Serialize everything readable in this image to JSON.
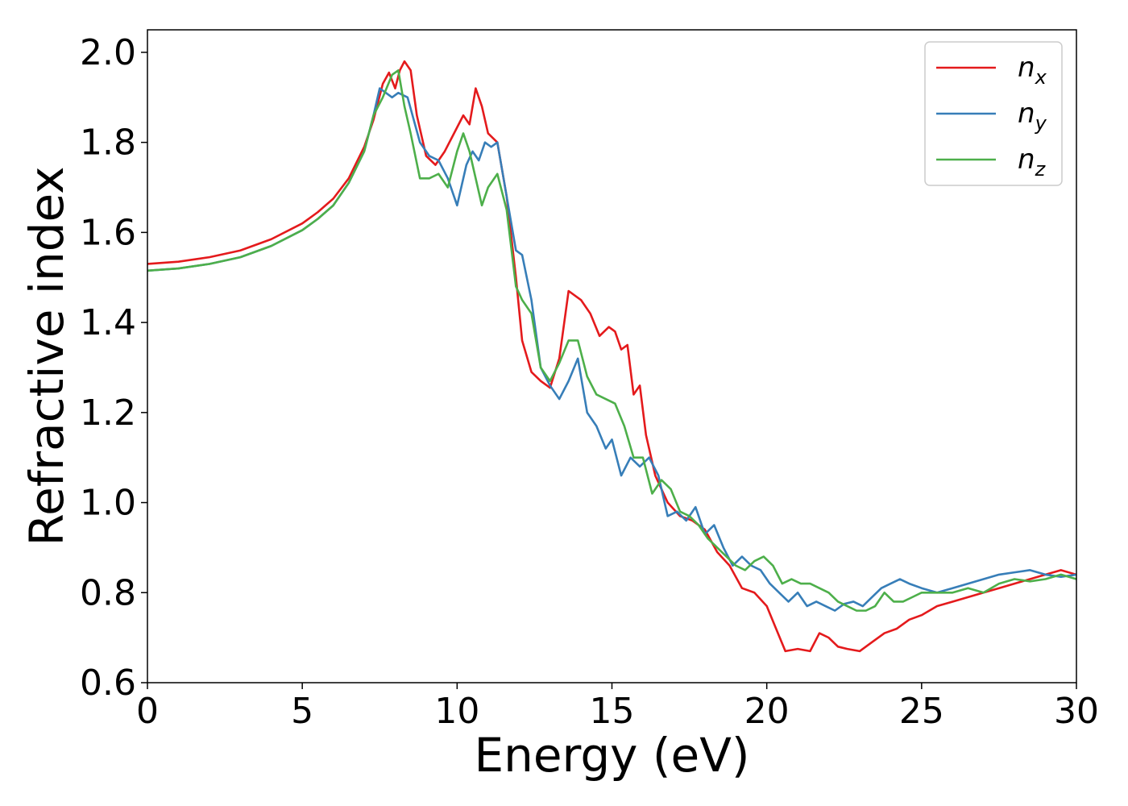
{
  "chart_data": {
    "type": "line",
    "xlabel": "Energy (eV)",
    "ylabel": "Refractive index",
    "xlim": [
      0,
      30
    ],
    "ylim": [
      0.6,
      2.05
    ],
    "xticks": [
      0,
      5,
      10,
      15,
      20,
      25,
      30
    ],
    "xtick_labels": [
      "0",
      "5",
      "10",
      "15",
      "20",
      "25",
      "30"
    ],
    "yticks": [
      0.6,
      0.8,
      1.0,
      1.2,
      1.4,
      1.6,
      1.8,
      2.0
    ],
    "ytick_labels": [
      "0.6",
      "0.8",
      "1.0",
      "1.2",
      "1.4",
      "1.6",
      "1.8",
      "2.0"
    ],
    "grid": false,
    "legend_position": "top-right",
    "series": [
      {
        "name": "n_x",
        "label_base": "n",
        "label_sub": "x",
        "color": "#e41a1c",
        "x": [
          0,
          1,
          2,
          3,
          4,
          5,
          5.5,
          6,
          6.5,
          7,
          7.3,
          7.6,
          7.8,
          8.0,
          8.15,
          8.3,
          8.5,
          8.7,
          9.0,
          9.3,
          9.6,
          9.9,
          10.2,
          10.4,
          10.6,
          10.8,
          11.0,
          11.3,
          11.6,
          11.9,
          12.1,
          12.4,
          12.7,
          13.0,
          13.3,
          13.6,
          14.0,
          14.3,
          14.6,
          14.9,
          15.1,
          15.3,
          15.5,
          15.7,
          15.9,
          16.1,
          16.4,
          16.8,
          17.2,
          17.6,
          18.0,
          18.4,
          18.8,
          19.2,
          19.6,
          20.0,
          20.3,
          20.6,
          21.0,
          21.4,
          21.7,
          22.0,
          22.3,
          22.6,
          23.0,
          23.4,
          23.8,
          24.2,
          24.6,
          25.0,
          25.5,
          26.0,
          26.5,
          27.0,
          27.5,
          28.0,
          28.5,
          29.0,
          29.5,
          30.0
        ],
        "y": [
          1.53,
          1.535,
          1.545,
          1.56,
          1.585,
          1.62,
          1.645,
          1.675,
          1.72,
          1.79,
          1.85,
          1.93,
          1.955,
          1.92,
          1.96,
          1.98,
          1.96,
          1.86,
          1.77,
          1.75,
          1.78,
          1.82,
          1.86,
          1.84,
          1.92,
          1.88,
          1.82,
          1.8,
          1.68,
          1.5,
          1.36,
          1.29,
          1.27,
          1.255,
          1.32,
          1.47,
          1.45,
          1.42,
          1.37,
          1.39,
          1.38,
          1.34,
          1.35,
          1.24,
          1.26,
          1.15,
          1.06,
          1.0,
          0.97,
          0.96,
          0.94,
          0.89,
          0.86,
          0.81,
          0.8,
          0.77,
          0.72,
          0.67,
          0.675,
          0.67,
          0.71,
          0.7,
          0.68,
          0.675,
          0.67,
          0.69,
          0.71,
          0.72,
          0.74,
          0.75,
          0.77,
          0.78,
          0.79,
          0.8,
          0.81,
          0.82,
          0.83,
          0.84,
          0.85,
          0.84
        ]
      },
      {
        "name": "n_y",
        "label_base": "n",
        "label_sub": "y",
        "color": "#377eb8",
        "x": [
          0,
          1,
          2,
          3,
          4,
          5,
          5.5,
          6,
          6.5,
          7,
          7.3,
          7.5,
          7.7,
          7.9,
          8.1,
          8.4,
          8.6,
          8.8,
          9.1,
          9.4,
          9.7,
          10.0,
          10.3,
          10.5,
          10.7,
          10.9,
          11.1,
          11.3,
          11.6,
          11.9,
          12.1,
          12.4,
          12.7,
          13.0,
          13.3,
          13.6,
          13.9,
          14.2,
          14.5,
          14.8,
          15.0,
          15.3,
          15.6,
          15.9,
          16.2,
          16.5,
          16.8,
          17.1,
          17.4,
          17.7,
          18.0,
          18.3,
          18.6,
          18.9,
          19.2,
          19.5,
          19.8,
          20.1,
          20.4,
          20.7,
          21.0,
          21.3,
          21.6,
          21.9,
          22.2,
          22.5,
          22.8,
          23.1,
          23.4,
          23.7,
          24.0,
          24.3,
          24.6,
          25.0,
          25.5,
          26.0,
          26.5,
          27.0,
          27.5,
          28.0,
          28.5,
          29.0,
          29.5,
          30.0
        ],
        "y": [
          1.515,
          1.52,
          1.53,
          1.545,
          1.57,
          1.605,
          1.63,
          1.66,
          1.71,
          1.78,
          1.86,
          1.92,
          1.91,
          1.9,
          1.91,
          1.9,
          1.85,
          1.8,
          1.77,
          1.76,
          1.72,
          1.66,
          1.75,
          1.78,
          1.76,
          1.8,
          1.79,
          1.8,
          1.68,
          1.56,
          1.55,
          1.45,
          1.3,
          1.26,
          1.23,
          1.27,
          1.32,
          1.2,
          1.17,
          1.12,
          1.14,
          1.06,
          1.1,
          1.08,
          1.1,
          1.06,
          0.97,
          0.98,
          0.96,
          0.99,
          0.93,
          0.95,
          0.9,
          0.86,
          0.88,
          0.86,
          0.85,
          0.82,
          0.8,
          0.78,
          0.8,
          0.77,
          0.78,
          0.77,
          0.76,
          0.775,
          0.78,
          0.77,
          0.79,
          0.81,
          0.82,
          0.83,
          0.82,
          0.81,
          0.8,
          0.81,
          0.82,
          0.83,
          0.84,
          0.845,
          0.85,
          0.84,
          0.835,
          0.84
        ]
      },
      {
        "name": "n_z",
        "label_base": "n",
        "label_sub": "z",
        "color": "#4daf4a",
        "x": [
          0,
          1,
          2,
          3,
          4,
          5,
          5.5,
          6,
          6.5,
          7,
          7.3,
          7.6,
          7.9,
          8.1,
          8.3,
          8.5,
          8.8,
          9.1,
          9.4,
          9.7,
          10.0,
          10.2,
          10.4,
          10.6,
          10.8,
          11.0,
          11.3,
          11.6,
          11.9,
          12.1,
          12.4,
          12.7,
          13.0,
          13.3,
          13.6,
          13.9,
          14.2,
          14.5,
          14.8,
          15.1,
          15.4,
          15.7,
          16.0,
          16.3,
          16.6,
          16.9,
          17.2,
          17.5,
          17.8,
          18.1,
          18.4,
          18.7,
          19.0,
          19.3,
          19.6,
          19.9,
          20.2,
          20.5,
          20.8,
          21.1,
          21.4,
          21.7,
          22.0,
          22.3,
          22.6,
          22.9,
          23.2,
          23.5,
          23.8,
          24.1,
          24.4,
          24.7,
          25.0,
          25.5,
          26.0,
          26.5,
          27.0,
          27.5,
          28.0,
          28.5,
          29.0,
          29.5,
          30.0
        ],
        "y": [
          1.515,
          1.52,
          1.53,
          1.545,
          1.57,
          1.605,
          1.63,
          1.66,
          1.71,
          1.78,
          1.86,
          1.9,
          1.95,
          1.96,
          1.88,
          1.82,
          1.72,
          1.72,
          1.73,
          1.7,
          1.78,
          1.82,
          1.78,
          1.72,
          1.66,
          1.7,
          1.73,
          1.65,
          1.48,
          1.45,
          1.42,
          1.3,
          1.27,
          1.31,
          1.36,
          1.36,
          1.28,
          1.24,
          1.23,
          1.22,
          1.17,
          1.1,
          1.1,
          1.02,
          1.05,
          1.03,
          0.98,
          0.97,
          0.95,
          0.92,
          0.9,
          0.88,
          0.86,
          0.85,
          0.87,
          0.88,
          0.86,
          0.82,
          0.83,
          0.82,
          0.82,
          0.81,
          0.8,
          0.78,
          0.77,
          0.76,
          0.76,
          0.77,
          0.8,
          0.78,
          0.78,
          0.79,
          0.8,
          0.8,
          0.8,
          0.81,
          0.8,
          0.82,
          0.83,
          0.825,
          0.83,
          0.84,
          0.83
        ]
      }
    ]
  }
}
